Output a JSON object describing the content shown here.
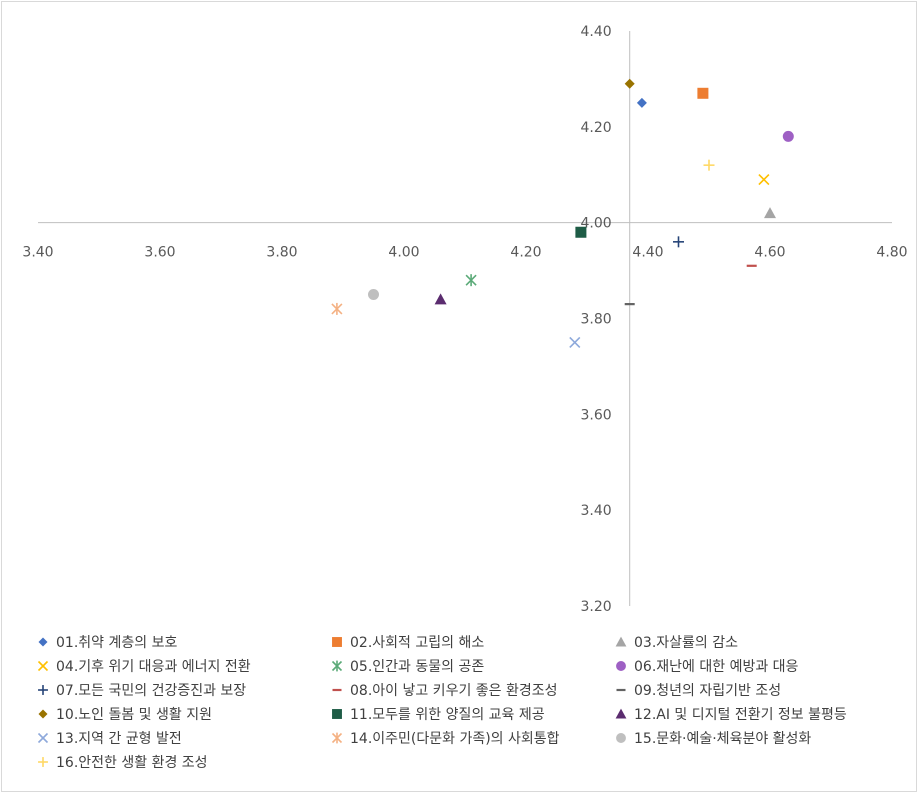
{
  "chart_data": {
    "type": "scatter",
    "title": "",
    "xlabel": "",
    "ylabel": "",
    "xlim": [
      3.4,
      4.8
    ],
    "ylim": [
      3.2,
      4.4
    ],
    "x_ticks": [
      "3.40",
      "3.60",
      "3.80",
      "4.00",
      "4.20",
      "4.40",
      "4.60",
      "4.80"
    ],
    "y_ticks": [
      "3.20",
      "3.40",
      "3.60",
      "3.80",
      "4.00",
      "4.20",
      "4.40"
    ],
    "axes_cross": {
      "x": 4.37,
      "y": 4.0
    },
    "legend_position": "bottom",
    "series": [
      {
        "name": "01.취약 계층의 보호",
        "marker": "diamond",
        "color": "#4472C4",
        "x": 4.39,
        "y": 4.25
      },
      {
        "name": "02.사회적 고립의 해소",
        "marker": "square",
        "color": "#ED7D31",
        "x": 4.49,
        "y": 4.27
      },
      {
        "name": "03.자살률의 감소",
        "marker": "triangle",
        "color": "#A5A5A5",
        "x": 4.6,
        "y": 4.02
      },
      {
        "name": "04.기후 위기 대응과 에너지 전환",
        "marker": "x",
        "color": "#FFC000",
        "x": 4.59,
        "y": 4.09
      },
      {
        "name": "05.인간과 동물의 공존",
        "marker": "asterisk",
        "color": "#5BAA78",
        "x": 4.11,
        "y": 3.88
      },
      {
        "name": "06.재난에 대한 예방과 대응",
        "marker": "circle",
        "color": "#9E60C4",
        "x": 4.63,
        "y": 4.18
      },
      {
        "name": "07.모든 국민의 건강증진과 보장",
        "marker": "plus",
        "color": "#264478",
        "x": 4.45,
        "y": 3.96
      },
      {
        "name": "08.아이 낳고 키우기 좋은 환경조성",
        "marker": "dash",
        "color": "#C0504D",
        "x": 4.57,
        "y": 3.91
      },
      {
        "name": "09.청년의 자립기반 조성",
        "marker": "dash",
        "color": "#636363",
        "x": 4.37,
        "y": 3.83
      },
      {
        "name": "10.노인 돌봄 및 생활 지원",
        "marker": "diamond",
        "color": "#997300",
        "x": 4.37,
        "y": 4.29
      },
      {
        "name": "11.모두를 위한 양질의 교육 제공",
        "marker": "square",
        "color": "#1E5C46",
        "x": 4.29,
        "y": 3.98
      },
      {
        "name": "12.AI 및 디지털 전환기 정보 불평등",
        "marker": "triangle",
        "color": "#5B2C6F",
        "x": 4.06,
        "y": 3.84
      },
      {
        "name": "13.지역 간 균형 발전",
        "marker": "x",
        "color": "#8EA9DB",
        "x": 4.28,
        "y": 3.75
      },
      {
        "name": "14.이주민(다문화 가족)의 사회통합",
        "marker": "asterisk",
        "color": "#F4B183",
        "x": 3.89,
        "y": 3.82
      },
      {
        "name": "15.문화·예술·체육분야 활성화",
        "marker": "circle",
        "color": "#BFBFBF",
        "x": 3.95,
        "y": 3.85
      },
      {
        "name": "16.안전한 생활 환경 조성",
        "marker": "plus",
        "color": "#FFD966",
        "x": 4.5,
        "y": 4.12
      }
    ]
  }
}
